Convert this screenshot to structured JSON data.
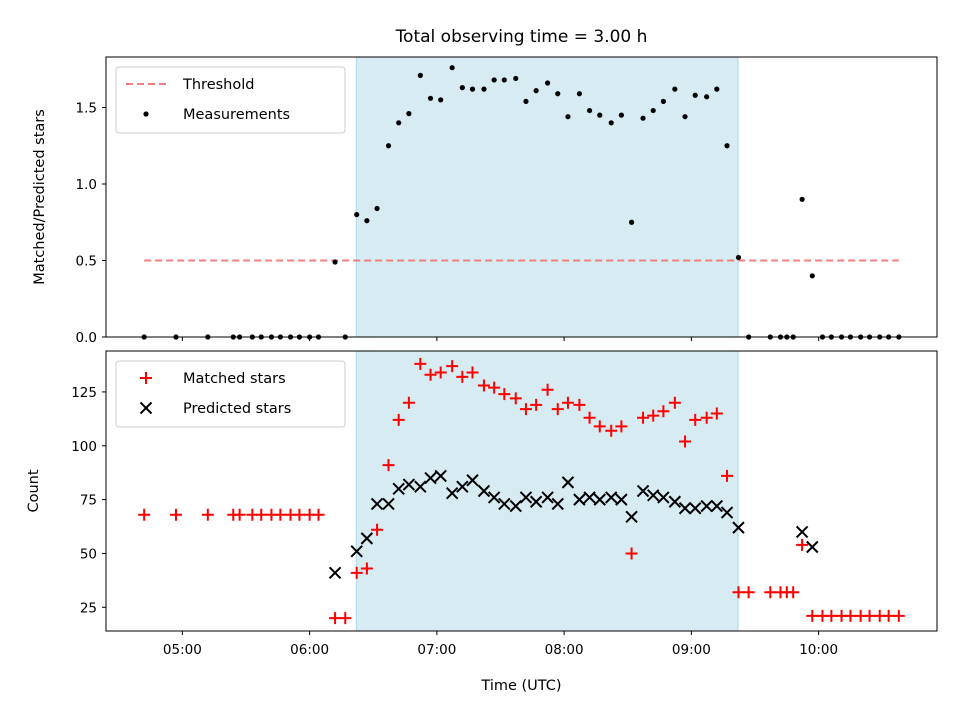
{
  "chart_data": {
    "title": "Total observing time = 3.00 h",
    "xlabel": "Time (UTC)",
    "x_unit": "hours (UTC)",
    "xlim": [
      4.4,
      10.93
    ],
    "xticks": [
      {
        "value": 5,
        "label": "05:00"
      },
      {
        "value": 6,
        "label": "06:00"
      },
      {
        "value": 7,
        "label": "07:00"
      },
      {
        "value": 8,
        "label": "08:00"
      },
      {
        "value": 9,
        "label": "09:00"
      },
      {
        "value": 10,
        "label": "10:00"
      }
    ],
    "observing_window": [
      6.367,
      9.367
    ],
    "window_color": "#add8e6",
    "panels": [
      {
        "type": "scatter",
        "ylabel": "Matched/Predicted stars",
        "ylim": [
          0,
          1.83
        ],
        "yticks": [
          {
            "value": 0,
            "label": "0.0"
          },
          {
            "value": 0.5,
            "label": "0.5"
          },
          {
            "value": 1.0,
            "label": "1.0"
          },
          {
            "value": 1.5,
            "label": "1.5"
          }
        ],
        "legend": {
          "position": "upper left",
          "entries": [
            "Threshold",
            "Measurements"
          ]
        },
        "series": [
          {
            "name": "Threshold",
            "style": "dashed-line",
            "color": "#f08080",
            "x": [
              4.7,
              10.63
            ],
            "y": [
              0.5,
              0.5
            ]
          },
          {
            "name": "Measurements",
            "style": "dot",
            "color": "#000000",
            "x": [
              4.7,
              4.95,
              5.2,
              5.4,
              5.45,
              5.55,
              5.62,
              5.7,
              5.77,
              5.85,
              5.92,
              6.0,
              6.07,
              6.2,
              6.28,
              6.37,
              6.45,
              6.53,
              6.62,
              6.7,
              6.78,
              6.87,
              6.95,
              7.03,
              7.12,
              7.2,
              7.28,
              7.37,
              7.45,
              7.53,
              7.62,
              7.7,
              7.78,
              7.87,
              7.95,
              8.03,
              8.12,
              8.2,
              8.28,
              8.37,
              8.45,
              8.53,
              8.62,
              8.7,
              8.78,
              8.87,
              8.95,
              9.03,
              9.12,
              9.2,
              9.28,
              9.37,
              9.45,
              9.62,
              9.7,
              9.75,
              9.8,
              9.87,
              9.95,
              10.03,
              10.1,
              10.18,
              10.25,
              10.33,
              10.4,
              10.48,
              10.55,
              10.63
            ],
            "y": [
              0,
              0,
              0,
              0,
              0,
              0,
              0,
              0,
              0,
              0,
              0,
              0,
              0,
              0.49,
              0,
              0.8,
              0.76,
              0.84,
              1.25,
              1.4,
              1.46,
              1.71,
              1.56,
              1.55,
              1.76,
              1.63,
              1.62,
              1.62,
              1.68,
              1.68,
              1.69,
              1.54,
              1.61,
              1.66,
              1.59,
              1.44,
              1.59,
              1.48,
              1.45,
              1.4,
              1.45,
              0.75,
              1.43,
              1.48,
              1.54,
              1.62,
              1.44,
              1.58,
              1.57,
              1.62,
              1.25,
              0.52,
              0,
              0,
              0,
              0,
              0,
              0.9,
              0.4,
              0,
              0,
              0,
              0,
              0,
              0,
              0,
              0,
              0
            ]
          }
        ]
      },
      {
        "type": "scatter",
        "ylabel": "Count",
        "ylim": [
          14,
          144
        ],
        "yticks": [
          {
            "value": 25,
            "label": "25"
          },
          {
            "value": 50,
            "label": "50"
          },
          {
            "value": 75,
            "label": "75"
          },
          {
            "value": 100,
            "label": "100"
          },
          {
            "value": 125,
            "label": "125"
          }
        ],
        "legend": {
          "position": "upper left",
          "entries": [
            "Matched stars",
            "Predicted stars"
          ]
        },
        "series": [
          {
            "name": "Matched stars",
            "style": "plus",
            "color": "#ff0000",
            "x": [
              4.7,
              4.95,
              5.2,
              5.4,
              5.45,
              5.55,
              5.62,
              5.7,
              5.77,
              5.85,
              5.92,
              6.0,
              6.07,
              6.2,
              6.28,
              6.37,
              6.45,
              6.53,
              6.62,
              6.7,
              6.78,
              6.87,
              6.95,
              7.03,
              7.12,
              7.2,
              7.28,
              7.37,
              7.45,
              7.53,
              7.62,
              7.7,
              7.78,
              7.87,
              7.95,
              8.03,
              8.12,
              8.2,
              8.28,
              8.37,
              8.45,
              8.53,
              8.62,
              8.7,
              8.78,
              8.87,
              8.95,
              9.03,
              9.12,
              9.2,
              9.28,
              9.37,
              9.45,
              9.62,
              9.7,
              9.75,
              9.8,
              9.87,
              9.95,
              10.03,
              10.1,
              10.18,
              10.25,
              10.33,
              10.4,
              10.48,
              10.55,
              10.63
            ],
            "y": [
              68,
              68,
              68,
              68,
              68,
              68,
              68,
              68,
              68,
              68,
              68,
              68,
              68,
              20,
              20,
              41,
              43,
              61,
              91,
              112,
              120,
              138,
              133,
              134,
              137,
              132,
              134,
              128,
              127,
              124,
              122,
              117,
              119,
              126,
              117,
              120,
              119,
              113,
              109,
              107,
              109,
              50,
              113,
              114,
              116,
              120,
              102,
              112,
              113,
              115,
              86,
              32,
              32,
              32,
              32,
              32,
              32,
              54,
              21,
              21,
              21,
              21,
              21,
              21,
              21,
              21,
              21,
              21
            ]
          },
          {
            "name": "Predicted stars",
            "style": "x",
            "color": "#000000",
            "x": [
              6.2,
              6.37,
              6.45,
              6.53,
              6.62,
              6.7,
              6.78,
              6.87,
              6.95,
              7.03,
              7.12,
              7.2,
              7.28,
              7.37,
              7.45,
              7.53,
              7.62,
              7.7,
              7.78,
              7.87,
              7.95,
              8.03,
              8.12,
              8.2,
              8.28,
              8.37,
              8.45,
              8.53,
              8.62,
              8.7,
              8.78,
              8.87,
              8.95,
              9.03,
              9.12,
              9.2,
              9.28,
              9.37,
              9.87,
              9.95
            ],
            "y": [
              41,
              51,
              57,
              73,
              73,
              80,
              82,
              81,
              85,
              86,
              78,
              81,
              84,
              79,
              76,
              73,
              72,
              76,
              74,
              76,
              73,
              83,
              75,
              76,
              75,
              76,
              75,
              67,
              79,
              77,
              76,
              74,
              71,
              71,
              72,
              72,
              69,
              62,
              60,
              53
            ]
          }
        ]
      }
    ]
  }
}
